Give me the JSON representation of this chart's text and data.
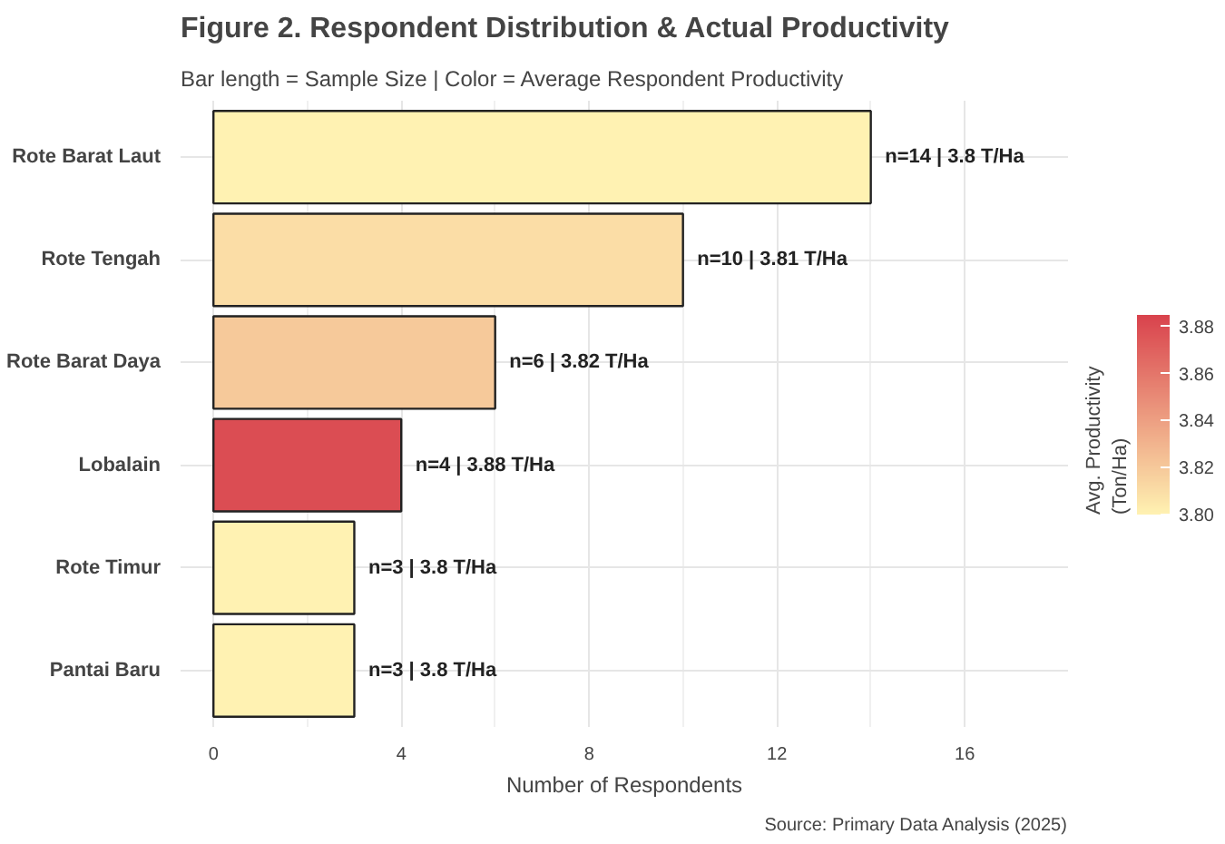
{
  "chart_data": {
    "type": "bar",
    "orientation": "horizontal",
    "title": "Figure 2. Respondent Distribution & Actual Productivity",
    "subtitle": "Bar length = Sample Size | Color = Average Respondent Productivity",
    "xlabel": "Number of Respondents",
    "categories": [
      "Rote Barat Laut",
      "Rote Tengah",
      "Rote Barat Daya",
      "Lobalain",
      "Rote Timur",
      "Pantai Baru"
    ],
    "values": [
      14,
      10,
      6,
      4,
      3,
      3
    ],
    "cvalues": [
      3.8,
      3.81,
      3.82,
      3.88,
      3.8,
      3.8
    ],
    "value_labels": [
      "n=14 | 3.8 T/Ha",
      "n=10 | 3.81 T/Ha",
      "n=6 | 3.82 T/Ha",
      "n=4 | 3.88 T/Ha",
      "n=3 | 3.8 T/Ha",
      "n=3 | 3.8 T/Ha"
    ],
    "xlim": [
      -0.7,
      18.2
    ],
    "xticks": [
      0,
      4,
      8,
      12,
      16
    ],
    "clabel": "Avg. Productivity\n(Ton/Ha)",
    "clim": [
      3.8,
      3.885
    ],
    "cticks": [
      {
        "value": 3.8,
        "label": "3.80"
      },
      3.82,
      3.84,
      3.86,
      3.88
    ],
    "grid": true,
    "annotations": [
      "Source: Primary Data Analysis (2025)"
    ]
  }
}
